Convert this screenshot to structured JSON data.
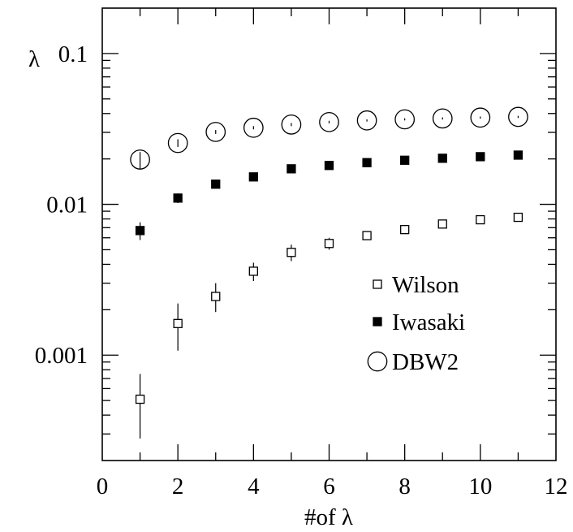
{
  "chart_data": {
    "type": "scatter",
    "title": "",
    "xlabel": "#of  λ",
    "ylabel": "λ",
    "xlim": [
      0,
      12
    ],
    "ylim": [
      0.0002,
      0.2
    ],
    "yscale": "log",
    "x_ticks": [
      0,
      2,
      4,
      6,
      8,
      10,
      12
    ],
    "x_tick_labels": [
      "0",
      "2",
      "4",
      "6",
      "8",
      "10",
      "12"
    ],
    "y_ticks": [
      0.001,
      0.01,
      0.1
    ],
    "y_tick_labels": [
      "0.001",
      "0.01",
      "0.1"
    ],
    "grid": false,
    "legend_position": "inside right",
    "series": [
      {
        "name": "Wilson",
        "marker": "open-square",
        "x": [
          1,
          2,
          3,
          4,
          5,
          6,
          7,
          8,
          9,
          10,
          11
        ],
        "y": [
          0.00051,
          0.00162,
          0.00245,
          0.0036,
          0.0048,
          0.0055,
          0.0062,
          0.0068,
          0.0074,
          0.0079,
          0.0082
        ],
        "err_low": [
          0.00028,
          0.00107,
          0.00193,
          0.0031,
          0.0042,
          0.005,
          0.0058,
          0.0065,
          0.0071,
          0.0076,
          0.0079
        ],
        "err_high": [
          0.00075,
          0.0022,
          0.003,
          0.0041,
          0.0054,
          0.006,
          0.0066,
          0.0071,
          0.0077,
          0.0082,
          0.0085
        ]
      },
      {
        "name": "Iwasaki",
        "marker": "filled-square",
        "x": [
          1,
          2,
          3,
          4,
          5,
          6,
          7,
          8,
          9,
          10,
          11
        ],
        "y": [
          0.0067,
          0.011,
          0.0136,
          0.0152,
          0.0172,
          0.0181,
          0.0189,
          0.0196,
          0.0202,
          0.0207,
          0.0212
        ],
        "err_low": [
          0.0058,
          0.0102,
          0.0133,
          0.0149,
          0.0169,
          0.0179,
          0.0187,
          0.0194,
          0.02,
          0.0205,
          0.021
        ],
        "err_high": [
          0.0076,
          0.0118,
          0.0139,
          0.0155,
          0.0175,
          0.0183,
          0.0191,
          0.0198,
          0.0204,
          0.0209,
          0.0214
        ]
      },
      {
        "name": "DBW2",
        "marker": "open-circle",
        "x": [
          1,
          2,
          3,
          4,
          5,
          6,
          7,
          8,
          9,
          10,
          11
        ],
        "y": [
          0.0198,
          0.0255,
          0.0302,
          0.0322,
          0.0338,
          0.0351,
          0.036,
          0.0366,
          0.0371,
          0.0376,
          0.038
        ],
        "err_low": [
          0.0172,
          0.024,
          0.0293,
          0.0314,
          0.033,
          0.0344,
          0.0354,
          0.036,
          0.0365,
          0.037,
          0.0374
        ],
        "err_high": [
          0.0222,
          0.027,
          0.0311,
          0.033,
          0.0346,
          0.0358,
          0.0366,
          0.0372,
          0.0377,
          0.0382,
          0.0386
        ]
      }
    ]
  }
}
